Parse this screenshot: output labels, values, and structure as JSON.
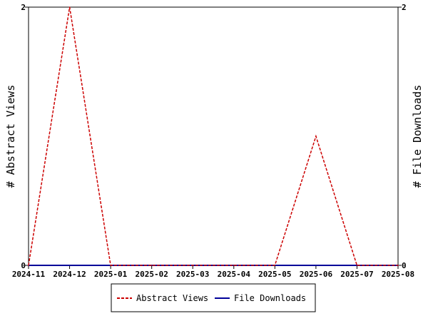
{
  "chart_data": {
    "type": "line",
    "x": [
      "2024-11",
      "2024-12",
      "2025-01",
      "2025-02",
      "2025-03",
      "2025-04",
      "2025-05",
      "2025-06",
      "2025-07",
      "2025-08"
    ],
    "xticks": [
      "2024-11",
      "2024-12",
      "2025-01",
      "2025-02",
      "2025-03",
      "2025-04",
      "2025-05",
      "2025-06",
      "2025-07",
      "2025-08"
    ],
    "series": [
      {
        "name": "Abstract Views",
        "axis": "left",
        "color": "#cc0000",
        "style": "dashed",
        "values": [
          0,
          2,
          0,
          0,
          0,
          0,
          0,
          1,
          0,
          0
        ]
      },
      {
        "name": "File Downloads",
        "axis": "right",
        "color": "#000099",
        "style": "solid",
        "values": [
          0,
          0,
          0,
          0,
          0,
          0,
          0,
          0,
          0,
          0
        ]
      }
    ],
    "ylabel_left": "# Abstract Views",
    "ylabel_right": "# File Downloads",
    "ylim_left": [
      0,
      2
    ],
    "ylim_right": [
      0,
      2
    ],
    "yticks_left": [
      "0",
      "2"
    ],
    "yticks_right": [
      "0",
      "2"
    ],
    "grid": false,
    "legend_position": "bottom"
  }
}
